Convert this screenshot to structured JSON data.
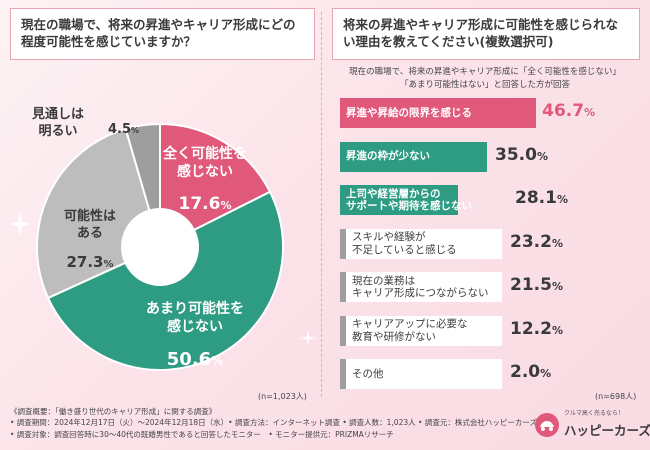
{
  "colors": {
    "pink": "#e0587a",
    "teal": "#2e9b83",
    "gray": "#bdbdbd",
    "dark_gray": "#9e9e9e",
    "text": "#333333"
  },
  "left_panel": {
    "title": "現在の職場で、将来の昇進やキャリア形成にどの程度可能性を感じていますか？",
    "n_label": "(n=1,023人)"
  },
  "right_panel": {
    "title": "将来の昇進やキャリア形成に可能性を感じられない理由を教えてください(複数選択可)",
    "note_line1": "現在の職場で、将来の昇進やキャリア形成に「全く可能性を感じない」",
    "note_line2": "「あまり可能性はない」と回答した方が回答",
    "n_label": "(n=698人)"
  },
  "chart_data": [
    {
      "type": "pie",
      "title": "現在の職場で、将来の昇進やキャリア形成にどの程度可能性を感じていますか？",
      "unit": "%",
      "slices": [
        {
          "label_lines": [
            "全く可能性を",
            "感じない"
          ],
          "value": 17.6,
          "value_text": "17.6",
          "color": "#e0587a"
        },
        {
          "label_lines": [
            "あまり可能性を",
            "感じない"
          ],
          "value": 50.6,
          "value_text": "50.6",
          "color": "#2e9b83"
        },
        {
          "label_lines": [
            "可能性は",
            "ある"
          ],
          "value": 27.3,
          "value_text": "27.3",
          "color": "#bdbdbd"
        },
        {
          "label_lines": [
            "見通しは",
            "明るい"
          ],
          "value": 4.5,
          "value_text": "4.5",
          "color": "#9e9e9e"
        }
      ]
    },
    {
      "type": "bar",
      "orientation": "horizontal",
      "title": "将来の昇進やキャリア形成に可能性を感じられない理由を教えてください(複数選択可)",
      "unit": "%",
      "xlim": [
        0,
        100
      ],
      "bars": [
        {
          "label_lines": [
            "昇進や昇給の限界を感じる"
          ],
          "value": 46.7,
          "value_text": "46.7",
          "color": "#e0587a"
        },
        {
          "label_lines": [
            "昇進の枠が少ない"
          ],
          "value": 35.0,
          "value_text": "35.0",
          "color": "#2e9b83"
        },
        {
          "label_lines": [
            "上司や経営層からの",
            "サポートや期待を感じない"
          ],
          "value": 28.1,
          "value_text": "28.1",
          "color": "#2e9b83"
        },
        {
          "label_lines": [
            "スキルや経験が",
            "不足していると感じる"
          ],
          "value": 23.2,
          "value_text": "23.2",
          "color": "#9e9e9e"
        },
        {
          "label_lines": [
            "現在の業務は",
            "キャリア形成につながらない"
          ],
          "value": 21.5,
          "value_text": "21.5",
          "color": "#9e9e9e"
        },
        {
          "label_lines": [
            "キャリアアップに必要な",
            "教育や研修がない"
          ],
          "value": 12.2,
          "value_text": "12.2",
          "color": "#9e9e9e"
        },
        {
          "label_lines": [
            "その他"
          ],
          "value": 2.0,
          "value_text": "2.0",
          "color": "#9e9e9e"
        }
      ]
    }
  ],
  "footer": {
    "line1": "《調査概要：「働き盛り世代のキャリア形成」に関する調査》",
    "line2": "• 調査期間：2024年12月17日（火）〜2024年12月18日（水）• 調査方法：インターネット調査 • 調査人数：1,023人 • 調査元：株式会社ハッピーカーズ",
    "line3": "• 調査対象：調査回答時に30〜40代の既婚男性であると回答したモニター　• モニター提供元：PRIZMAリサーチ"
  },
  "logo": {
    "tagline": "クルマ高く売るなら！",
    "name": "ハッピーカーズ"
  }
}
